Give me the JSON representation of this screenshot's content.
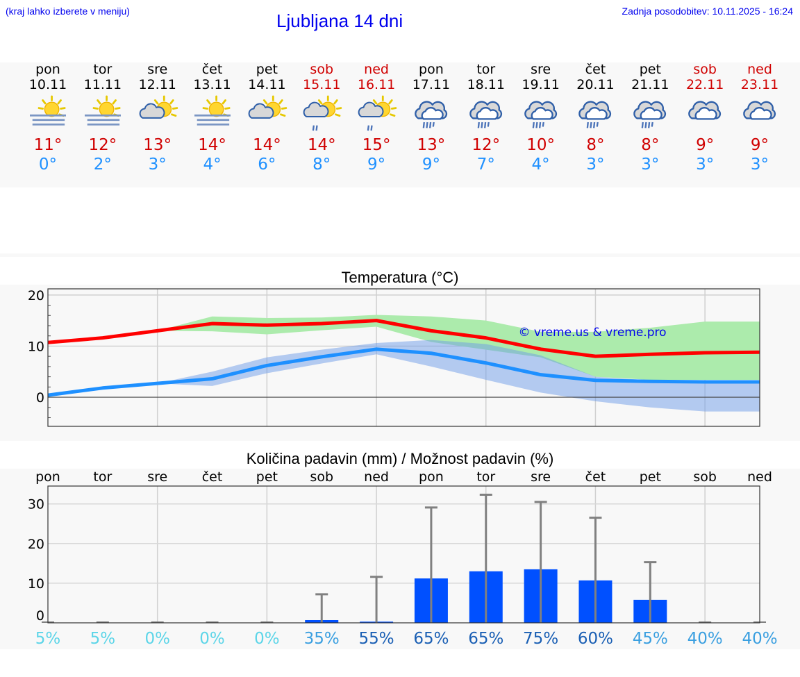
{
  "header": {
    "hint": "(kraj lahko izberete v meniju)",
    "title": "Ljubljana 14 dni",
    "updated": "Zadnja posodobitev: 10.11.2025 - 16:24"
  },
  "days": [
    {
      "name": "pon",
      "date": "10.11",
      "icon": "sun-fog-icon",
      "max": "11°",
      "min": "0°",
      "weekend": false
    },
    {
      "name": "tor",
      "date": "11.11",
      "icon": "sun-fog-icon",
      "max": "12°",
      "min": "2°",
      "weekend": false
    },
    {
      "name": "sre",
      "date": "12.11",
      "icon": "partly-cloudy-icon",
      "max": "13°",
      "min": "3°",
      "weekend": false
    },
    {
      "name": "čet",
      "date": "13.11",
      "icon": "sun-fog-icon",
      "max": "14°",
      "min": "4°",
      "weekend": false
    },
    {
      "name": "pet",
      "date": "14.11",
      "icon": "partly-cloudy-icon",
      "max": "14°",
      "min": "6°",
      "weekend": false
    },
    {
      "name": "sob",
      "date": "15.11",
      "icon": "sun-cloud-rain-icon",
      "max": "14°",
      "min": "8°",
      "weekend": true
    },
    {
      "name": "ned",
      "date": "16.11",
      "icon": "sun-cloud-rain-icon",
      "max": "15°",
      "min": "9°",
      "weekend": true
    },
    {
      "name": "pon",
      "date": "17.11",
      "icon": "cloud-rain-icon",
      "max": "13°",
      "min": "9°",
      "weekend": false
    },
    {
      "name": "tor",
      "date": "18.11",
      "icon": "cloud-rain-icon",
      "max": "12°",
      "min": "7°",
      "weekend": false
    },
    {
      "name": "sre",
      "date": "19.11",
      "icon": "cloud-rain-icon",
      "max": "10°",
      "min": "4°",
      "weekend": false
    },
    {
      "name": "čet",
      "date": "20.11",
      "icon": "cloud-rain-icon",
      "max": "8°",
      "min": "3°",
      "weekend": false
    },
    {
      "name": "pet",
      "date": "21.11",
      "icon": "cloud-rain-icon",
      "max": "8°",
      "min": "3°",
      "weekend": false
    },
    {
      "name": "sob",
      "date": "22.11",
      "icon": "cloudy-icon",
      "max": "9°",
      "min": "3°",
      "weekend": true
    },
    {
      "name": "ned",
      "date": "23.11",
      "icon": "cloudy-icon",
      "max": "9°",
      "min": "3°",
      "weekend": true
    }
  ],
  "colors": {
    "max": "#ff0000",
    "min": "#1e90ff",
    "max_band": "#acebac",
    "min_band": "#a9c4f2",
    "bar": "#0050ff",
    "whisker": "#808080",
    "pct_low": "#5cd5e8",
    "pct_mid": "#3a9fe0",
    "pct_high": "#1a5fb4"
  },
  "chart_data": [
    {
      "type": "line",
      "title": "Temperatura (°C)",
      "watermark": "© vreme.us & vreme.pro",
      "ylim": [
        -5.7,
        21.2
      ],
      "yticks": [
        "20",
        "10",
        "0"
      ],
      "grid": true,
      "series": [
        {
          "key": "max",
          "values": [
            10.7,
            11.6,
            13.0,
            14.4,
            14.1,
            14.4,
            15.0,
            13.0,
            11.6,
            9.4,
            8.0,
            8.4,
            8.7,
            8.8
          ],
          "band_top": [
            10.7,
            11.6,
            13.0,
            15.8,
            15.5,
            15.6,
            16.1,
            15.8,
            15.0,
            12.8,
            12.8,
            13.6,
            14.8,
            14.8
          ],
          "band_bottom": [
            10.7,
            11.6,
            13.0,
            12.9,
            12.3,
            13.1,
            13.8,
            10.8,
            9.3,
            7.8,
            4.0,
            3.4,
            3.4,
            3.4
          ]
        },
        {
          "key": "min",
          "values": [
            0.4,
            1.8,
            2.7,
            3.6,
            6.2,
            7.9,
            9.4,
            8.6,
            6.7,
            4.4,
            3.3,
            3.1,
            3.0,
            3.0
          ],
          "band_top": [
            0.4,
            2.0,
            2.7,
            5.0,
            7.8,
            9.3,
            10.6,
            11.2,
            10.4,
            8.2,
            4.0,
            3.3,
            3.0,
            3.0
          ],
          "band_bottom": [
            0.4,
            1.5,
            2.7,
            2.2,
            4.7,
            6.6,
            8.4,
            6.0,
            3.4,
            0.9,
            -0.8,
            -2.0,
            -2.8,
            -2.8
          ]
        }
      ]
    },
    {
      "type": "bar",
      "title": "Količina padavin (mm) / Možnost padavin (%)",
      "categories": [
        "pon",
        "tor",
        "sre",
        "čet",
        "pet",
        "sob",
        "ned",
        "pon",
        "tor",
        "sre",
        "čet",
        "pet",
        "sob",
        "ned"
      ],
      "ylim": [
        0,
        34.5
      ],
      "yticks": [
        "30",
        "20",
        "10",
        "0"
      ],
      "values": [
        0,
        0,
        0,
        0,
        0,
        0.7,
        0.3,
        11.2,
        13.0,
        13.5,
        10.7,
        5.8,
        0,
        0
      ],
      "max_values": [
        0,
        0,
        0,
        0,
        0,
        7.2,
        11.6,
        29.1,
        32.3,
        30.5,
        26.5,
        15.3,
        0,
        0
      ],
      "probability": [
        "5%",
        "5%",
        "0%",
        "0%",
        "0%",
        "35%",
        "55%",
        "65%",
        "65%",
        "75%",
        "60%",
        "45%",
        "40%",
        "40%"
      ]
    }
  ]
}
